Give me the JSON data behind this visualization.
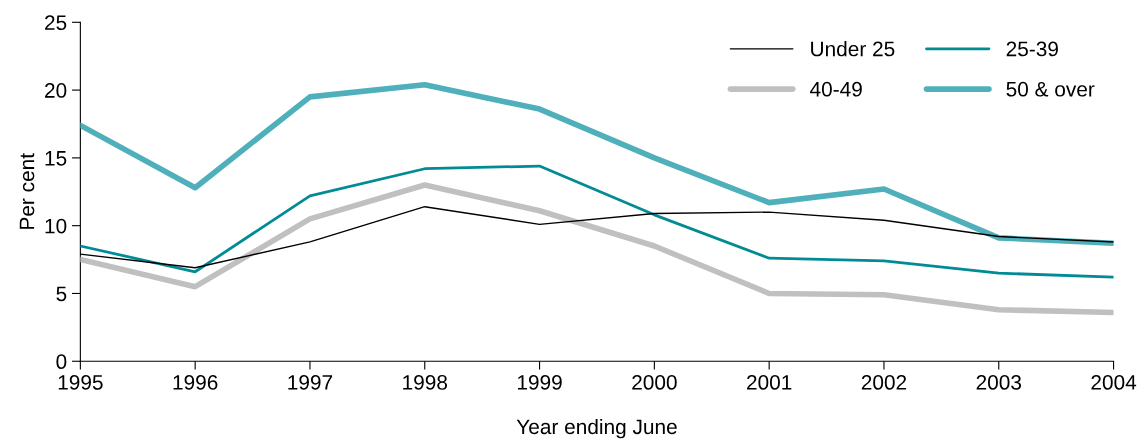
{
  "chart_data": {
    "type": "line",
    "xlabel": "Year ending June",
    "ylabel": "Per cent",
    "x": [
      1995,
      1996,
      1997,
      1998,
      1999,
      2000,
      2001,
      2002,
      2003,
      2004
    ],
    "xlim": [
      1995,
      2004
    ],
    "xticks": [
      1995,
      1996,
      1997,
      1998,
      1999,
      2000,
      2001,
      2002,
      2003,
      2004
    ],
    "ylim": [
      0,
      25
    ],
    "yticks": [
      0,
      5,
      10,
      15,
      20,
      25
    ],
    "grid": false,
    "legend": "top right",
    "marker": "none",
    "series": [
      {
        "name": "Under 25",
        "color": "#000000",
        "values": [
          7.9,
          6.9,
          8.8,
          11.4,
          10.1,
          10.9,
          11.0,
          10.4,
          9.2,
          8.8
        ]
      },
      {
        "name": "25-39",
        "color": "#008b95",
        "values": [
          8.5,
          6.6,
          12.2,
          14.2,
          14.4,
          10.8,
          7.6,
          7.4,
          6.5,
          6.2
        ]
      },
      {
        "name": "40-49",
        "color": "#c0c0c0",
        "values": [
          7.5,
          5.5,
          10.5,
          13.0,
          11.1,
          8.5,
          5.0,
          4.9,
          3.8,
          3.6
        ]
      },
      {
        "name": "50 & over",
        "color": "#4fb0bb",
        "values": [
          17.4,
          12.8,
          19.5,
          20.4,
          18.6,
          15.0,
          11.7,
          12.7,
          9.1,
          8.7
        ]
      }
    ]
  }
}
